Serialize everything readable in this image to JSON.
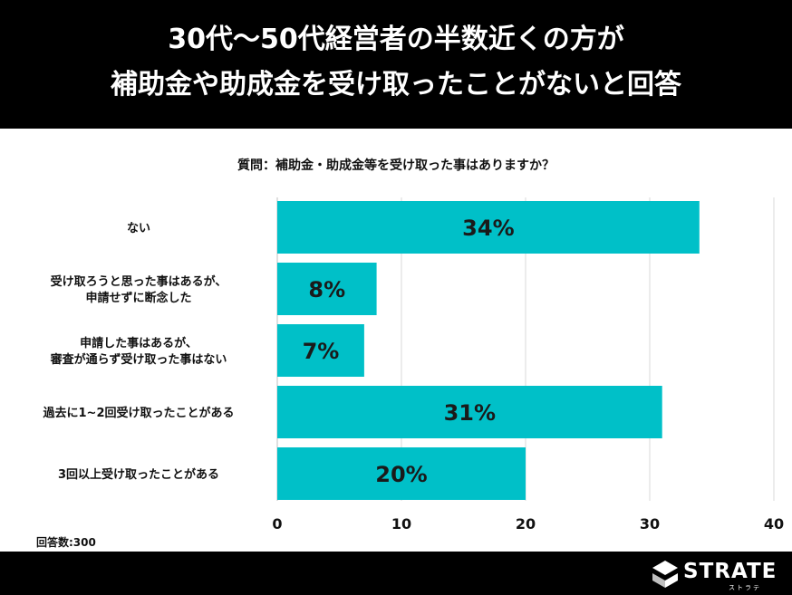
{
  "header": {
    "title_line1": "30代〜50代経営者の半数近くの方が",
    "title_line2": "補助金や助成金を受け取ったことがないと回答"
  },
  "question": "質問：補助金・助成金等を受け取った事はありますか？",
  "respondents": "回答数:300",
  "brand": {
    "name": "STRATE",
    "kana": "ストラテ"
  },
  "colors": {
    "bar": "#00c0c8",
    "header_bg": "#000000",
    "grid": "#d9d9d9"
  },
  "chart_data": {
    "type": "bar",
    "orientation": "horizontal",
    "title": "質問：補助金・助成金等を受け取った事はありますか？",
    "categories": [
      [
        "ない"
      ],
      [
        "受け取ろうと思った事はあるが、",
        "申請せずに断念した"
      ],
      [
        "申請した事はあるが、",
        "審査が通らず受け取った事はない"
      ],
      [
        "過去に1~2回受け取ったことがある"
      ],
      [
        "3回以上受け取ったことがある"
      ]
    ],
    "values": [
      34,
      8,
      7,
      31,
      20
    ],
    "value_labels": [
      "34%",
      "8%",
      "7%",
      "31%",
      "20%"
    ],
    "xlim": [
      0,
      40
    ],
    "xticks": [
      0,
      10,
      20,
      30,
      40
    ],
    "grid": true,
    "xlabel": "",
    "ylabel": ""
  }
}
